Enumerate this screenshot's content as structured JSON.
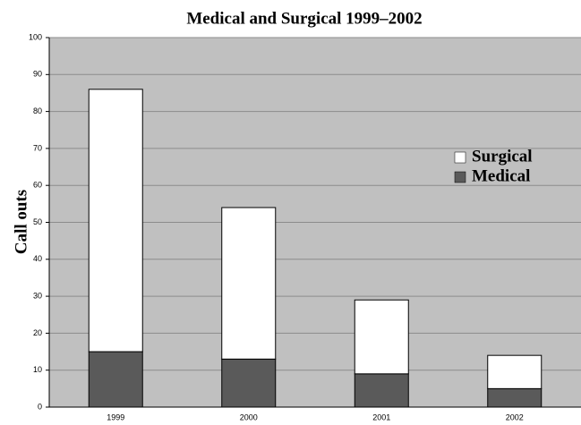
{
  "chart_data": {
    "type": "stacked_bar",
    "title": "Medical and Surgical 1999–2002",
    "y_label": "Call outs",
    "categories": [
      "1999",
      "2000",
      "2001",
      "2002"
    ],
    "series": [
      {
        "name": "Medical",
        "color": "#5a5a5a",
        "values": [
          15,
          13,
          9,
          5
        ]
      },
      {
        "name": "Surgical",
        "color": "#ffffff",
        "values": [
          71,
          41,
          20,
          9
        ]
      }
    ],
    "ylim": [
      0,
      100
    ],
    "yticks": [
      0,
      10,
      20,
      30,
      40,
      50,
      60,
      70,
      80,
      90,
      100
    ],
    "grid": true,
    "legend": "right"
  }
}
